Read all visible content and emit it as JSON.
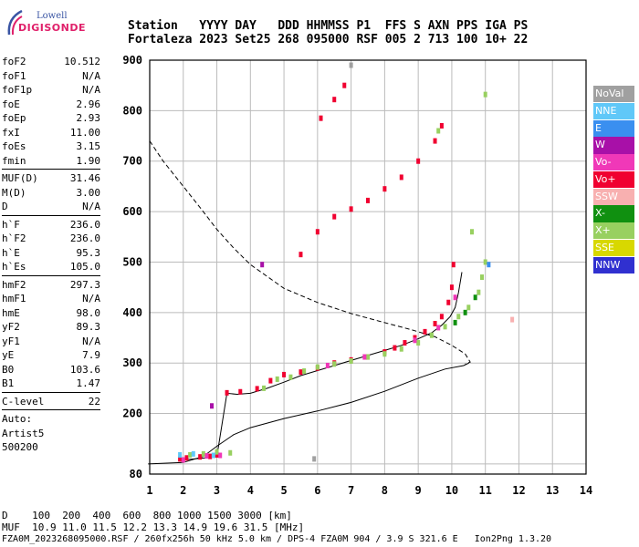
{
  "logo": {
    "top": "Lowell",
    "bottom": "DIGISONDE"
  },
  "header": {
    "line1": "Station   YYYY DAY   DDD HHMMSS P1  FFS S AXN PPS IGA PS",
    "line2": "Fortaleza 2023 Set25 268 095000 RSF 005 2 713 100 10+ 22"
  },
  "params": [
    [
      {
        "k": "foF2",
        "v": "10.512"
      },
      {
        "k": "foF1",
        "v": "N/A"
      },
      {
        "k": "foF1p",
        "v": "N/A"
      },
      {
        "k": "foE",
        "v": "2.96"
      },
      {
        "k": "foEp",
        "v": "2.93"
      },
      {
        "k": "fxI",
        "v": "11.00"
      },
      {
        "k": "foEs",
        "v": "3.15"
      },
      {
        "k": "fmin",
        "v": "1.90"
      }
    ],
    [
      {
        "k": "MUF(D)",
        "v": "31.46"
      },
      {
        "k": "M(D)",
        "v": "3.00"
      },
      {
        "k": "D",
        "v": "N/A"
      }
    ],
    [
      {
        "k": "h`F",
        "v": "236.0"
      },
      {
        "k": "h`F2",
        "v": "236.0"
      },
      {
        "k": "h`E",
        "v": "95.3"
      },
      {
        "k": "h`Es",
        "v": "105.0"
      }
    ],
    [
      {
        "k": "hmF2",
        "v": "297.3"
      },
      {
        "k": "hmF1",
        "v": "N/A"
      },
      {
        "k": "hmE",
        "v": "98.0"
      },
      {
        "k": "yF2",
        "v": "89.3"
      },
      {
        "k": "yF1",
        "v": "N/A"
      },
      {
        "k": "yE",
        "v": "7.9"
      },
      {
        "k": "B0",
        "v": "103.6"
      },
      {
        "k": "B1",
        "v": "1.47"
      }
    ],
    [
      {
        "k": "C-level",
        "v": "22"
      }
    ]
  ],
  "auto": [
    "Auto:",
    "Artist5",
    "500200"
  ],
  "legend": [
    {
      "label": "NoVal",
      "color": "#a0a0a0"
    },
    {
      "label": "NNE",
      "color": "#60c8f8"
    },
    {
      "label": "E",
      "color": "#3a8ff0"
    },
    {
      "label": "W",
      "color": "#a810a8"
    },
    {
      "label": "Vo-",
      "color": "#f038b8"
    },
    {
      "label": "Vo+",
      "color": "#f00030"
    },
    {
      "label": "SSW",
      "color": "#f8b0b0"
    },
    {
      "label": "X-",
      "color": "#109010"
    },
    {
      "label": "X+",
      "color": "#98d060"
    },
    {
      "label": "SSE",
      "color": "#d8d800"
    },
    {
      "label": "NNW",
      "color": "#3030d0"
    }
  ],
  "bottom": {
    "line1": "D    100  200  400  600  800 1000 1500 3000 [km]",
    "line2": "MUF  10.9 11.0 11.5 12.2 13.3 14.9 19.6 31.5 [MHz]",
    "line3": "FZA0M_2023268095000.RSF / 260fx256h 50 kHz 5.0 km / DPS-4 FZA0M 904 / 3.9 S 321.6 E   Ion2Png 1.3.20"
  },
  "chart_data": {
    "type": "scatter",
    "xlim": [
      1,
      14
    ],
    "ylim": [
      80,
      900
    ],
    "x_ticks": [
      1,
      2,
      3,
      4,
      5,
      6,
      7,
      8,
      9,
      10,
      11,
      12,
      13,
      14
    ],
    "y_ticks": [
      100,
      200,
      300,
      400,
      500,
      600,
      700,
      800,
      900
    ],
    "y_ticks_labeled": [
      80,
      200,
      300,
      400,
      500,
      600,
      700,
      800,
      900
    ],
    "grid": true,
    "series": [
      {
        "name": "Vo+",
        "color": "#f00030",
        "x": [
          1.9,
          2.1,
          2.5,
          2.8,
          3.0,
          3.3,
          3.7,
          4.2,
          4.6,
          5.0,
          5.5,
          6.0,
          6.5,
          7.0,
          7.5,
          8.0,
          8.3,
          8.6,
          8.9,
          9.2,
          9.5,
          9.7,
          9.9,
          10.0,
          10.05,
          5.5,
          6.0,
          6.5,
          7.0,
          7.5,
          8.0,
          8.5,
          9.0,
          9.5,
          9.7,
          6.1,
          6.5,
          6.8
        ],
        "y": [
          110,
          112,
          114,
          115,
          118,
          241,
          243,
          249,
          265,
          277,
          282,
          290,
          300,
          306,
          312,
          322,
          330,
          340,
          350,
          362,
          378,
          392,
          420,
          450,
          495,
          515,
          560,
          590,
          605,
          622,
          645,
          668,
          700,
          740,
          770,
          785,
          822,
          850
        ]
      },
      {
        "name": "X+",
        "color": "#98d060",
        "x": [
          2.2,
          2.6,
          3.0,
          3.4,
          4.4,
          4.8,
          5.2,
          5.6,
          6.0,
          6.5,
          7.0,
          7.5,
          8.0,
          8.5,
          9.0,
          9.4,
          9.8,
          10.2,
          10.5,
          10.8,
          10.9,
          11.0,
          10.6,
          11.0,
          9.6
        ],
        "y": [
          118,
          120,
          124,
          122,
          250,
          268,
          272,
          284,
          292,
          298,
          304,
          312,
          318,
          328,
          340,
          355,
          372,
          392,
          410,
          440,
          470,
          500,
          560,
          832,
          760
        ]
      },
      {
        "name": "Vo-",
        "color": "#f038b8",
        "x": [
          2.0,
          2.7,
          3.1,
          6.3,
          7.4,
          8.9,
          9.6,
          10.1
        ],
        "y": [
          108,
          116,
          117,
          295,
          312,
          345,
          370,
          430
        ]
      },
      {
        "name": "X-",
        "color": "#109010",
        "x": [
          10.1,
          10.4,
          10.7
        ],
        "y": [
          380,
          400,
          430
        ]
      },
      {
        "name": "NNE",
        "color": "#60c8f8",
        "x": [
          1.9,
          2.3,
          2.9
        ],
        "y": [
          118,
          120,
          117
        ]
      },
      {
        "name": "E",
        "color": "#3a8ff0",
        "x": [
          11.1
        ],
        "y": [
          495
        ]
      },
      {
        "name": "W",
        "color": "#a810a8",
        "x": [
          2.85,
          4.35
        ],
        "y": [
          215,
          495
        ]
      },
      {
        "name": "SSW",
        "color": "#f8b0b0",
        "x": [
          11.8
        ],
        "y": [
          386
        ]
      },
      {
        "name": "NoVal",
        "color": "#a0a0a0",
        "x": [
          5.9,
          7.0
        ],
        "y": [
          110,
          890
        ]
      }
    ],
    "lines": [
      {
        "style": "solid",
        "role": "profile",
        "x": [
          0.95,
          2.0,
          2.6,
          3.0,
          3.5,
          4.0,
          5.0,
          6.0,
          7.0,
          8.0,
          9.0,
          9.8,
          10.35,
          10.51
        ],
        "y": [
          100,
          103,
          115,
          135,
          158,
          172,
          190,
          205,
          222,
          244,
          270,
          288,
          295,
          300
        ]
      },
      {
        "style": "solid",
        "role": "trace",
        "x": [
          2.0,
          2.8,
          3.0,
          3.3,
          3.6,
          4.0,
          4.5,
          5.0,
          5.5,
          6.0,
          6.5,
          7.0,
          7.5,
          8.0,
          8.5,
          9.0,
          9.4,
          9.7,
          9.95,
          10.1,
          10.2,
          10.3
        ],
        "y": [
          108,
          113,
          114,
          240,
          238,
          240,
          250,
          262,
          275,
          285,
          295,
          305,
          315,
          325,
          335,
          348,
          360,
          375,
          392,
          410,
          440,
          480
        ]
      },
      {
        "style": "dashed",
        "role": "muf",
        "x": [
          1.0,
          1.4,
          2.0,
          2.5,
          3.0,
          3.5,
          4.0,
          5.0,
          6.0,
          7.0,
          8.0,
          8.8,
          9.5,
          10.0,
          10.4,
          10.55,
          10.4
        ],
        "y": [
          740,
          700,
          650,
          608,
          565,
          528,
          495,
          448,
          420,
          398,
          380,
          366,
          352,
          335,
          318,
          302,
          298
        ]
      }
    ]
  }
}
